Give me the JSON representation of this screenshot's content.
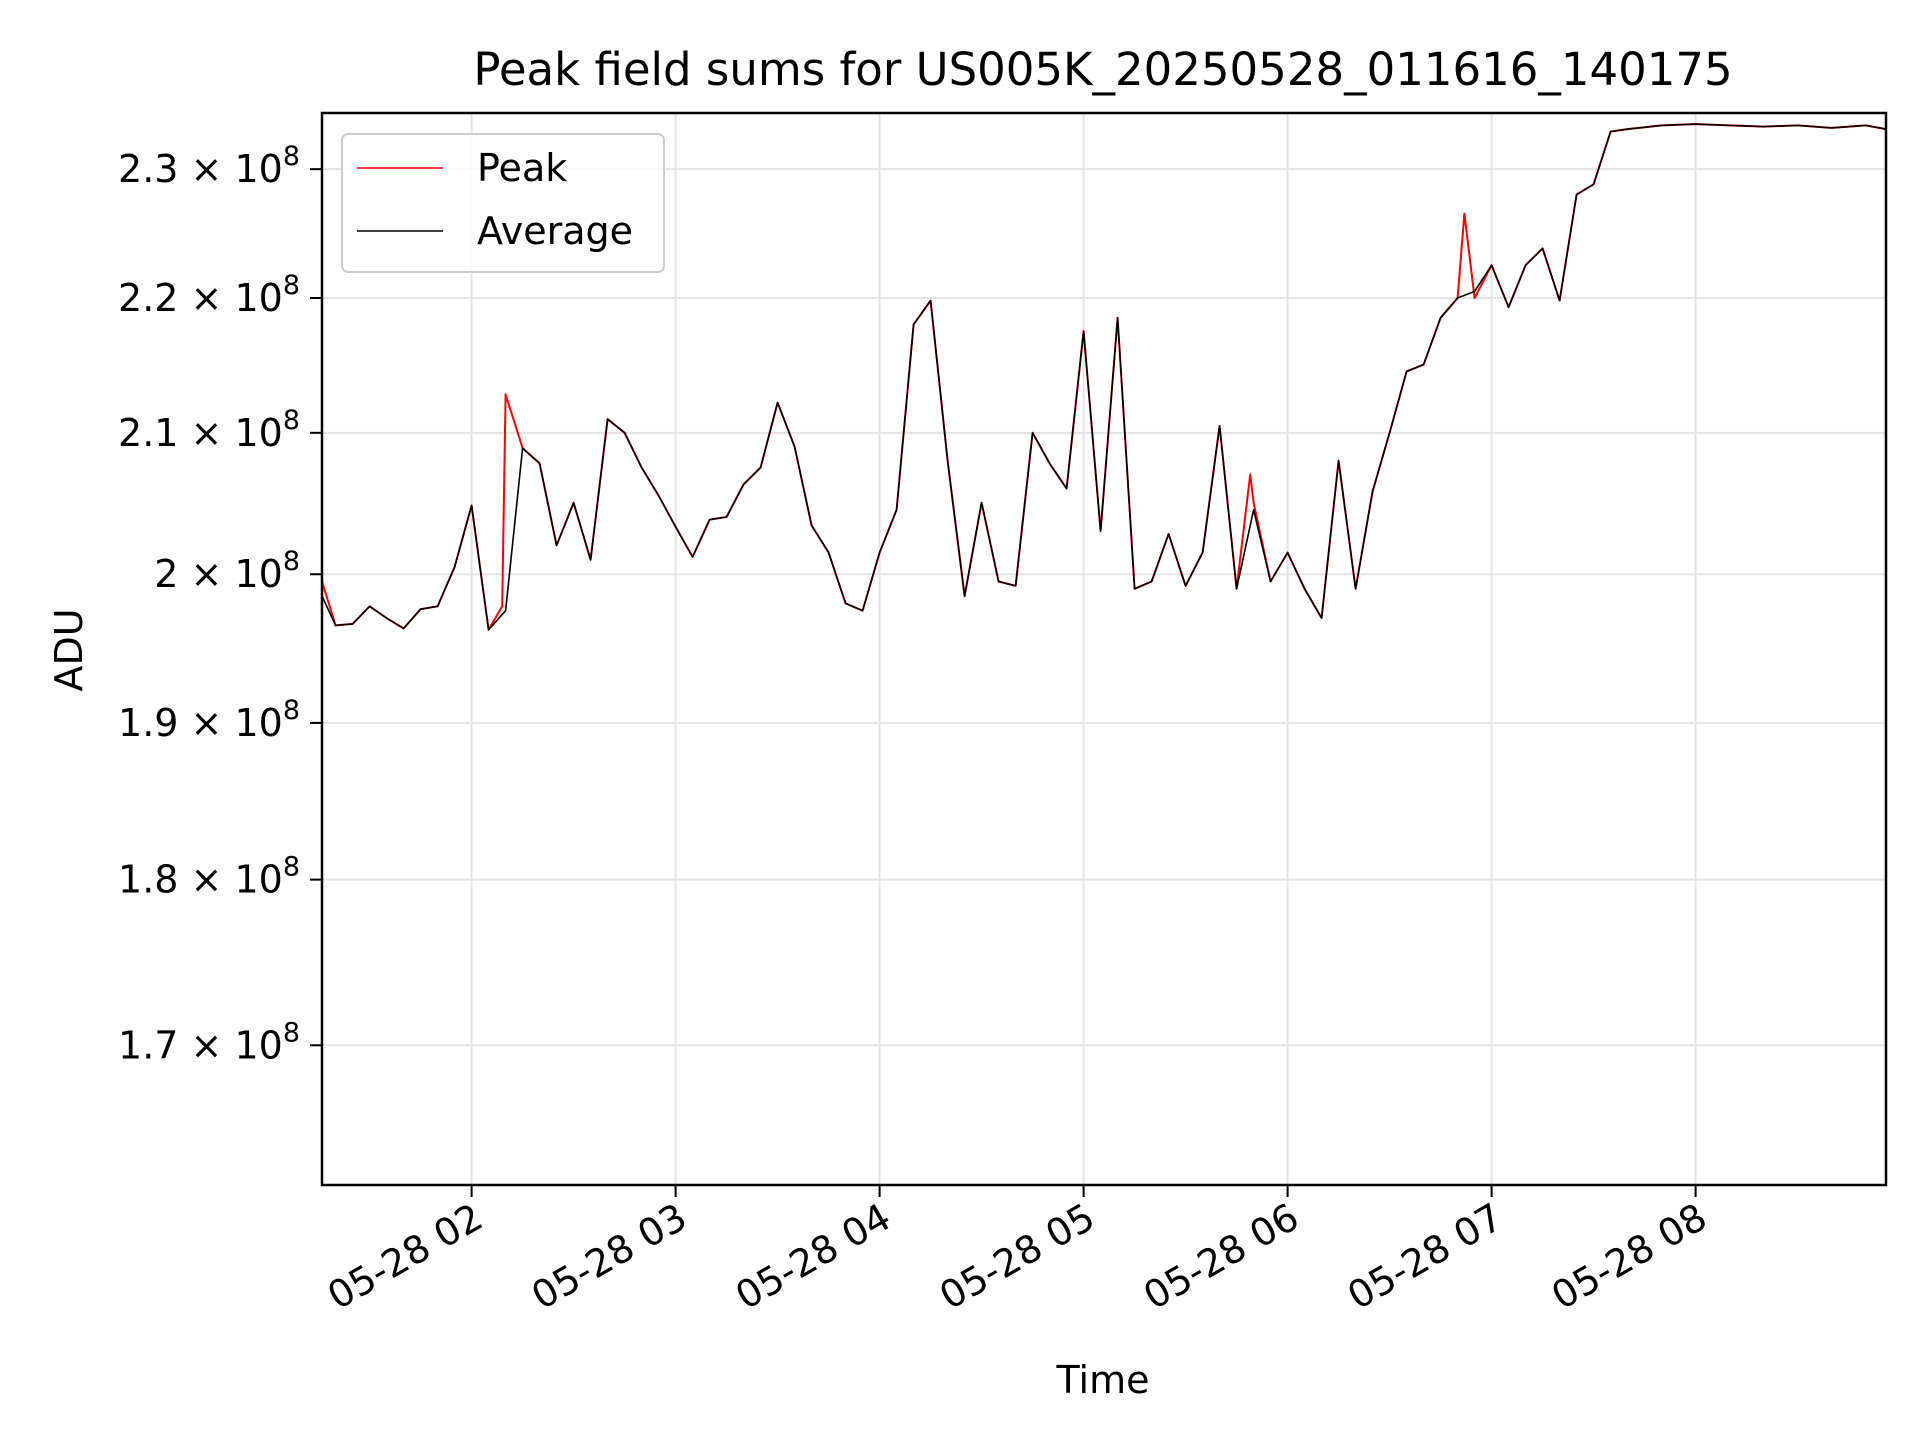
{
  "chart_data": {
    "type": "line",
    "title": "Peak field sums for US005K_20250528_011616_140175",
    "xlabel": "Time",
    "ylabel": "ADU",
    "yscale": "log",
    "grid": true,
    "legend_position": "top-left",
    "xlim": [
      "2025-05-28 01:16",
      "2025-05-28 08:56"
    ],
    "ylim": [
      162000000,
      234500000
    ],
    "x_ticks": [
      {
        "value": "2025-05-28 02:00",
        "label": "05-28 02"
      },
      {
        "value": "2025-05-28 03:00",
        "label": "05-28 03"
      },
      {
        "value": "2025-05-28 04:00",
        "label": "05-28 04"
      },
      {
        "value": "2025-05-28 05:00",
        "label": "05-28 05"
      },
      {
        "value": "2025-05-28 06:00",
        "label": "05-28 06"
      },
      {
        "value": "2025-05-28 07:00",
        "label": "05-28 07"
      },
      {
        "value": "2025-05-28 08:00",
        "label": "05-28 08"
      }
    ],
    "y_ticks": [
      {
        "value": 170000000,
        "mantissa": "1.7",
        "base": "10",
        "exponent": "8"
      },
      {
        "value": 180000000,
        "mantissa": "1.8",
        "base": "10",
        "exponent": "8"
      },
      {
        "value": 190000000,
        "mantissa": "1.9",
        "base": "10",
        "exponent": "8"
      },
      {
        "value": 200000000,
        "mantissa": "2",
        "base": "10",
        "exponent": "8"
      },
      {
        "value": 210000000,
        "mantissa": "2.1",
        "base": "10",
        "exponent": "8"
      },
      {
        "value": 220000000,
        "mantissa": "2.2",
        "base": "10",
        "exponent": "8"
      },
      {
        "value": 230000000,
        "mantissa": "2.3",
        "base": "10",
        "exponent": "8"
      }
    ],
    "series": [
      {
        "name": "Peak",
        "color": "#ff0000",
        "x": [
          "2025-05-28 01:16",
          "2025-05-28 01:20",
          "2025-05-28 01:25",
          "2025-05-28 01:30",
          "2025-05-28 01:35",
          "2025-05-28 01:40",
          "2025-05-28 01:45",
          "2025-05-28 01:50",
          "2025-05-28 01:55",
          "2025-05-28 02:00",
          "2025-05-28 02:05",
          "2025-05-28 02:09",
          "2025-05-28 02:10",
          "2025-05-28 02:15",
          "2025-05-28 02:20",
          "2025-05-28 02:25",
          "2025-05-28 02:30",
          "2025-05-28 02:35",
          "2025-05-28 02:40",
          "2025-05-28 02:45",
          "2025-05-28 02:50",
          "2025-05-28 02:55",
          "2025-05-28 03:00",
          "2025-05-28 03:05",
          "2025-05-28 03:10",
          "2025-05-28 03:15",
          "2025-05-28 03:20",
          "2025-05-28 03:25",
          "2025-05-28 03:30",
          "2025-05-28 03:35",
          "2025-05-28 03:40",
          "2025-05-28 03:45",
          "2025-05-28 03:50",
          "2025-05-28 03:55",
          "2025-05-28 04:00",
          "2025-05-28 04:05",
          "2025-05-28 04:10",
          "2025-05-28 04:15",
          "2025-05-28 04:20",
          "2025-05-28 04:25",
          "2025-05-28 04:30",
          "2025-05-28 04:35",
          "2025-05-28 04:40",
          "2025-05-28 04:45",
          "2025-05-28 04:50",
          "2025-05-28 04:55",
          "2025-05-28 05:00",
          "2025-05-28 05:05",
          "2025-05-28 05:10",
          "2025-05-28 05:15",
          "2025-05-28 05:20",
          "2025-05-28 05:25",
          "2025-05-28 05:30",
          "2025-05-28 05:35",
          "2025-05-28 05:40",
          "2025-05-28 05:45",
          "2025-05-28 05:49",
          "2025-05-28 05:50",
          "2025-05-28 05:55",
          "2025-05-28 06:00",
          "2025-05-28 06:05",
          "2025-05-28 06:10",
          "2025-05-28 06:15",
          "2025-05-28 06:20",
          "2025-05-28 06:25",
          "2025-05-28 06:30",
          "2025-05-28 06:35",
          "2025-05-28 06:40",
          "2025-05-28 06:45",
          "2025-05-28 06:50",
          "2025-05-28 06:52",
          "2025-05-28 06:55",
          "2025-05-28 07:00",
          "2025-05-28 07:05",
          "2025-05-28 07:10",
          "2025-05-28 07:15",
          "2025-05-28 07:20",
          "2025-05-28 07:25",
          "2025-05-28 07:30",
          "2025-05-28 07:35",
          "2025-05-28 07:40",
          "2025-05-28 07:50",
          "2025-05-28 08:00",
          "2025-05-28 08:10",
          "2025-05-28 08:20",
          "2025-05-28 08:30",
          "2025-05-28 08:40",
          "2025-05-28 08:50",
          "2025-05-28 08:56"
        ],
        "y": [
          199500000,
          196500000,
          196600000,
          197800000,
          197000000,
          196300000,
          197600000,
          197800000,
          200500000,
          204800000,
          196200000,
          197800000,
          212800000,
          208900000,
          207800000,
          202000000,
          205000000,
          201000000,
          211000000,
          210000000,
          207500000,
          205500000,
          203300000,
          201200000,
          203800000,
          204000000,
          206300000,
          207500000,
          212200000,
          209000000,
          203400000,
          201500000,
          198000000,
          197500000,
          201500000,
          204500000,
          218000000,
          219800000,
          208000000,
          198500000,
          205000000,
          199500000,
          199200000,
          210000000,
          207800000,
          206000000,
          217500000,
          203000000,
          218500000,
          199000000,
          199500000,
          202800000,
          199200000,
          201500000,
          210500000,
          199000000,
          207000000,
          205000000,
          199500000,
          201500000,
          199000000,
          197000000,
          208000000,
          199000000,
          205800000,
          210000000,
          214500000,
          215000000,
          218500000,
          220000000,
          226500000,
          220000000,
          222500000,
          219300000,
          222500000,
          223800000,
          219800000,
          228000000,
          228800000,
          233000000,
          233200000,
          233500000,
          233600000,
          233500000,
          233400000,
          233500000,
          233300000,
          233500000,
          233200000
        ]
      },
      {
        "name": "Average",
        "color": "#000000",
        "x": [
          "2025-05-28 01:16",
          "2025-05-28 01:20",
          "2025-05-28 01:25",
          "2025-05-28 01:30",
          "2025-05-28 01:35",
          "2025-05-28 01:40",
          "2025-05-28 01:45",
          "2025-05-28 01:50",
          "2025-05-28 01:55",
          "2025-05-28 02:00",
          "2025-05-28 02:05",
          "2025-05-28 02:10",
          "2025-05-28 02:15",
          "2025-05-28 02:20",
          "2025-05-28 02:25",
          "2025-05-28 02:30",
          "2025-05-28 02:35",
          "2025-05-28 02:40",
          "2025-05-28 02:45",
          "2025-05-28 02:50",
          "2025-05-28 02:55",
          "2025-05-28 03:00",
          "2025-05-28 03:05",
          "2025-05-28 03:10",
          "2025-05-28 03:15",
          "2025-05-28 03:20",
          "2025-05-28 03:25",
          "2025-05-28 03:30",
          "2025-05-28 03:35",
          "2025-05-28 03:40",
          "2025-05-28 03:45",
          "2025-05-28 03:50",
          "2025-05-28 03:55",
          "2025-05-28 04:00",
          "2025-05-28 04:05",
          "2025-05-28 04:10",
          "2025-05-28 04:15",
          "2025-05-28 04:20",
          "2025-05-28 04:25",
          "2025-05-28 04:30",
          "2025-05-28 04:35",
          "2025-05-28 04:40",
          "2025-05-28 04:45",
          "2025-05-28 04:50",
          "2025-05-28 04:55",
          "2025-05-28 05:00",
          "2025-05-28 05:05",
          "2025-05-28 05:10",
          "2025-05-28 05:15",
          "2025-05-28 05:20",
          "2025-05-28 05:25",
          "2025-05-28 05:30",
          "2025-05-28 05:35",
          "2025-05-28 05:40",
          "2025-05-28 05:45",
          "2025-05-28 05:50",
          "2025-05-28 05:55",
          "2025-05-28 06:00",
          "2025-05-28 06:05",
          "2025-05-28 06:10",
          "2025-05-28 06:15",
          "2025-05-28 06:20",
          "2025-05-28 06:25",
          "2025-05-28 06:30",
          "2025-05-28 06:35",
          "2025-05-28 06:40",
          "2025-05-28 06:45",
          "2025-05-28 06:50",
          "2025-05-28 06:55",
          "2025-05-28 07:00",
          "2025-05-28 07:05",
          "2025-05-28 07:10",
          "2025-05-28 07:15",
          "2025-05-28 07:20",
          "2025-05-28 07:25",
          "2025-05-28 07:30",
          "2025-05-28 07:35",
          "2025-05-28 07:40",
          "2025-05-28 07:50",
          "2025-05-28 08:00",
          "2025-05-28 08:10",
          "2025-05-28 08:20",
          "2025-05-28 08:30",
          "2025-05-28 08:40",
          "2025-05-28 08:50",
          "2025-05-28 08:56"
        ],
        "y": [
          198500000,
          196500000,
          196600000,
          197800000,
          197000000,
          196300000,
          197600000,
          197800000,
          200500000,
          204800000,
          196200000,
          197500000,
          208900000,
          207800000,
          202000000,
          205000000,
          201000000,
          211000000,
          210000000,
          207500000,
          205500000,
          203300000,
          201200000,
          203800000,
          204000000,
          206300000,
          207500000,
          212200000,
          209000000,
          203400000,
          201500000,
          198000000,
          197500000,
          201500000,
          204500000,
          218000000,
          219800000,
          208000000,
          198500000,
          205000000,
          199500000,
          199200000,
          210000000,
          207800000,
          206000000,
          217500000,
          203000000,
          218500000,
          199000000,
          199500000,
          202800000,
          199200000,
          201500000,
          210500000,
          199000000,
          204500000,
          199500000,
          201500000,
          199000000,
          197000000,
          208000000,
          199000000,
          205800000,
          210000000,
          214500000,
          215000000,
          218500000,
          220000000,
          220500000,
          222500000,
          219300000,
          222500000,
          223800000,
          219800000,
          228000000,
          228800000,
          233000000,
          233200000,
          233500000,
          233600000,
          233500000,
          233400000,
          233500000,
          233300000,
          233500000,
          233200000
        ]
      }
    ]
  }
}
